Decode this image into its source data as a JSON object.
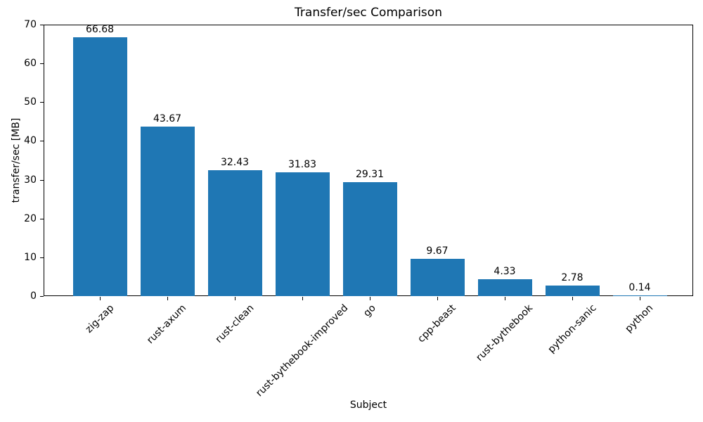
{
  "chart_data": {
    "type": "bar",
    "title": "Transfer/sec Comparison",
    "xlabel": "Subject",
    "ylabel": "transfer/sec [MB]",
    "categories": [
      "zig-zap",
      "rust-axum",
      "rust-clean",
      "rust-bythebook-improved",
      "go",
      "cpp-beast",
      "rust-bythebook",
      "python-sanic",
      "python"
    ],
    "values": [
      66.68,
      43.67,
      32.43,
      31.83,
      29.31,
      9.67,
      4.33,
      2.78,
      0.14
    ],
    "bar_value_labels": [
      "66.68",
      "43.67",
      "32.43",
      "31.83",
      "29.31",
      "9.67",
      "4.33",
      "2.78",
      "0.14"
    ],
    "ylim": [
      0,
      70
    ],
    "yticks": [
      0,
      10,
      20,
      30,
      40,
      50,
      60,
      70
    ],
    "ytick_labels": [
      "0",
      "10",
      "20",
      "30",
      "40",
      "50",
      "60",
      "70"
    ],
    "x_tick_rotation_deg": 45,
    "grid": false,
    "legend": null,
    "colors": {
      "bar": "#1f77b4",
      "text": "#000000",
      "spine": "#000000",
      "background": "#ffffff"
    }
  }
}
